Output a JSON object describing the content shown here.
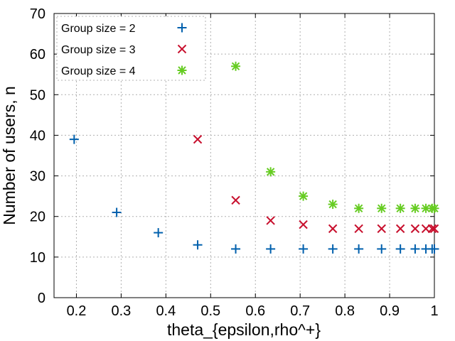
{
  "chart_data": {
    "type": "scatter",
    "xlabel": "theta_{epsilon,rho^+}",
    "ylabel": "Number of users, n",
    "xlim": [
      0.15,
      1.0
    ],
    "ylim": [
      0,
      70
    ],
    "xticks": [
      0.2,
      0.3,
      0.4,
      0.5,
      0.6,
      0.7,
      0.8,
      0.9,
      1
    ],
    "yticks": [
      0,
      10,
      20,
      30,
      40,
      50,
      60,
      70
    ],
    "grid": true,
    "legend_position": "top-left",
    "series": [
      {
        "name": "Group size = 2",
        "marker": "plus",
        "color": "#0060ad",
        "x": [
          0.195,
          0.29,
          0.383,
          0.471,
          0.556,
          0.634,
          0.707,
          0.773,
          0.831,
          0.882,
          0.924,
          0.957,
          0.981,
          0.995,
          1.0
        ],
        "y": [
          39,
          21,
          16,
          13,
          12,
          12,
          12,
          12,
          12,
          12,
          12,
          12,
          12,
          12,
          12
        ]
      },
      {
        "name": "Group size = 3",
        "marker": "cross",
        "color": "#c8102e",
        "x": [
          0.471,
          0.556,
          0.634,
          0.707,
          0.773,
          0.831,
          0.882,
          0.924,
          0.957,
          0.981,
          0.995,
          1.0
        ],
        "y": [
          39,
          24,
          19,
          18,
          17,
          17,
          17,
          17,
          17,
          17,
          17,
          17
        ]
      },
      {
        "name": "Group size = 4",
        "marker": "star",
        "color": "#66cc22",
        "x": [
          0.556,
          0.634,
          0.707,
          0.773,
          0.831,
          0.882,
          0.924,
          0.957,
          0.981,
          0.995,
          1.0
        ],
        "y": [
          57,
          31,
          25,
          23,
          22,
          22,
          22,
          22,
          22,
          22,
          22
        ]
      }
    ]
  }
}
